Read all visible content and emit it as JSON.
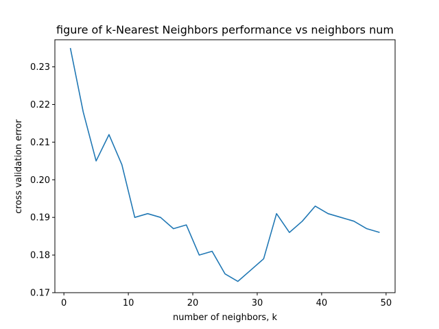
{
  "chart_data": {
    "type": "line",
    "title": "figure of k-Nearest Neighbors performance vs neighbors num",
    "xlabel": "number of neighbors, k",
    "ylabel": "cross validation error",
    "xlim": [
      -1.4,
      51.4
    ],
    "ylim": [
      0.17,
      0.2372
    ],
    "x_ticks": [
      0,
      10,
      20,
      30,
      40,
      50
    ],
    "y_ticks": [
      0.17,
      0.18,
      0.19,
      0.2,
      0.21,
      0.22,
      0.23
    ],
    "x_tick_labels": [
      "0",
      "10",
      "20",
      "30",
      "40",
      "50"
    ],
    "y_tick_labels": [
      "0.17",
      "0.18",
      "0.19",
      "0.20",
      "0.21",
      "0.22",
      "0.23"
    ],
    "grid": false,
    "line_color": "#1f77b4",
    "series": [
      {
        "x": [
          1,
          3,
          5,
          7,
          9,
          11,
          13,
          15,
          17,
          19,
          21,
          23,
          25,
          27,
          29,
          31,
          33,
          35,
          37,
          39,
          41,
          43,
          45,
          47,
          49
        ],
        "values": [
          0.235,
          0.218,
          0.205,
          0.212,
          0.204,
          0.19,
          0.191,
          0.19,
          0.187,
          0.188,
          0.18,
          0.181,
          0.175,
          0.173,
          0.176,
          0.179,
          0.191,
          0.186,
          0.189,
          0.193,
          0.191,
          0.19,
          0.189,
          0.187,
          0.186
        ]
      }
    ]
  }
}
